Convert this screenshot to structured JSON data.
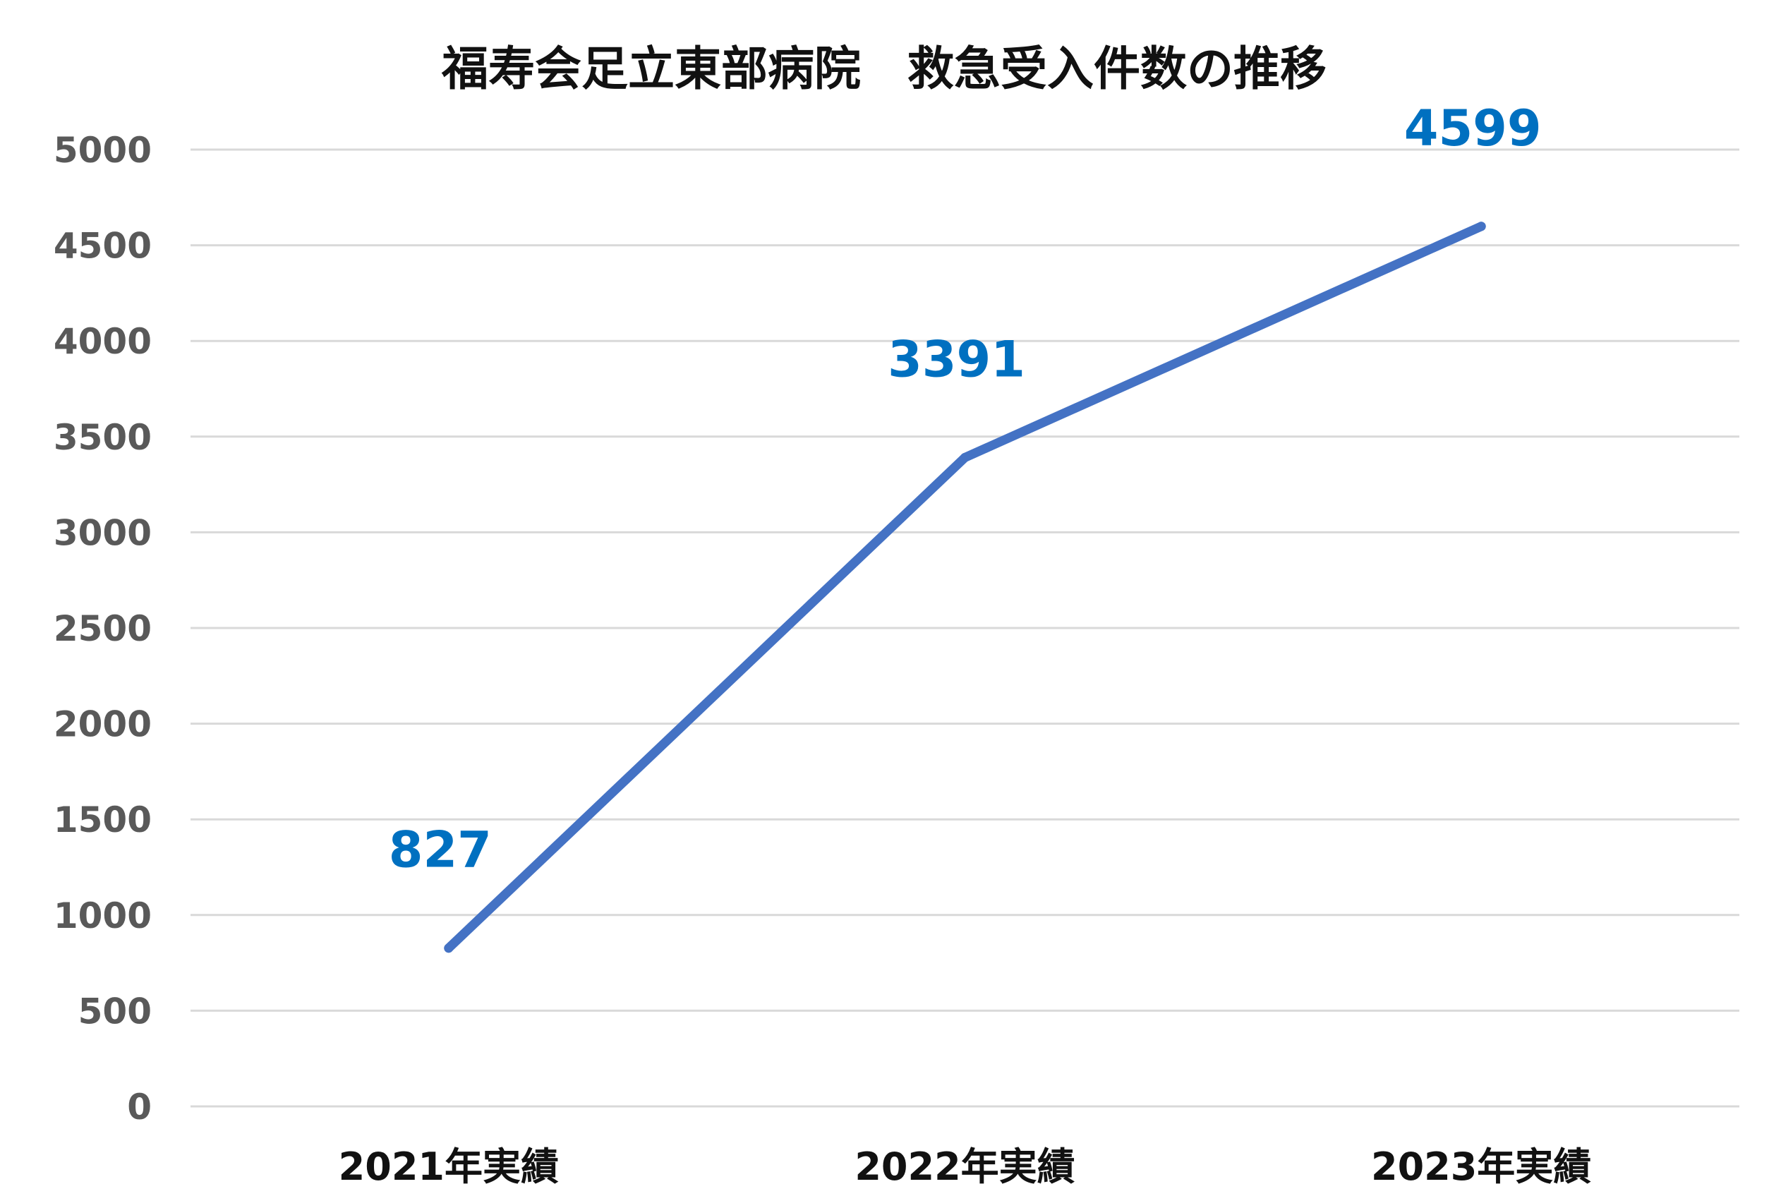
{
  "chart_data": {
    "type": "line",
    "title": "福寿会足立東部病院　救急受入件数の推移",
    "categories": [
      "2021年実績",
      "2022年実績",
      "2023年実績"
    ],
    "series": [
      {
        "values": [
          827,
          3391,
          4599
        ],
        "color": "#4472C4",
        "label_color": "#0070C0",
        "data_labels": [
          "827",
          "3391",
          "4599"
        ]
      }
    ],
    "ylim": [
      0,
      5000
    ],
    "yticks": [
      0,
      500,
      1000,
      1500,
      2000,
      2500,
      3000,
      3500,
      4000,
      4500,
      5000
    ],
    "ytick_labels": [
      "0",
      "500",
      "1000",
      "1500",
      "2000",
      "2500",
      "3000",
      "3500",
      "4000",
      "4500",
      "5000"
    ],
    "grid": true,
    "legend": "none"
  }
}
